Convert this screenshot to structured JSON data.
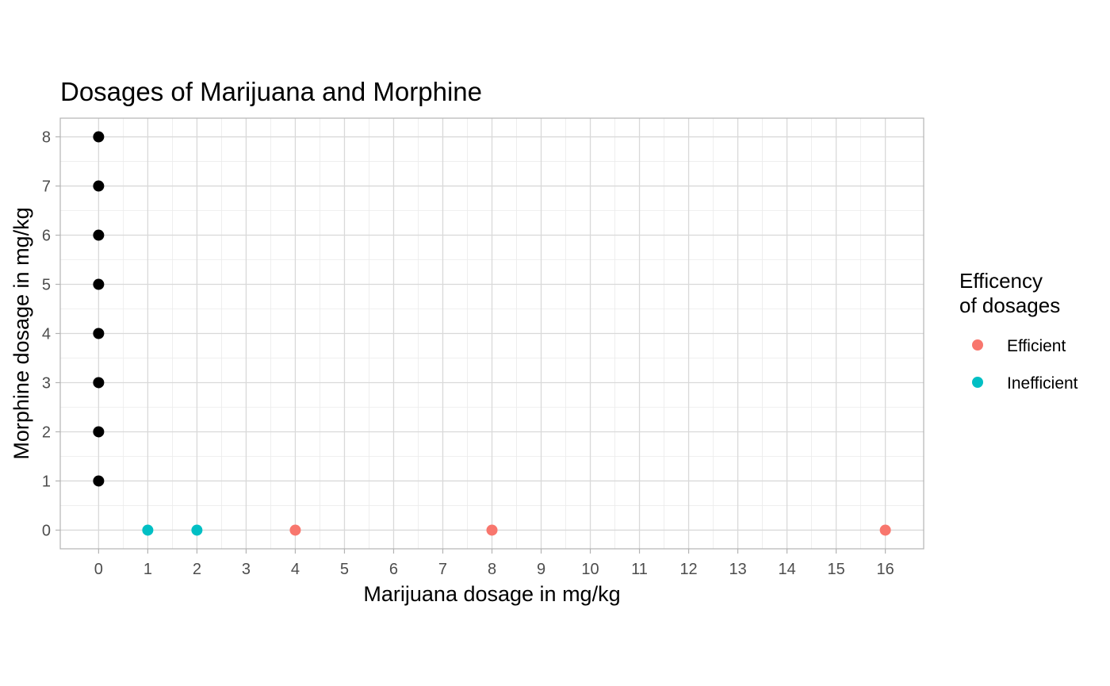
{
  "chart_data": {
    "type": "scatter",
    "title": "Dosages of Marijuana and Morphine",
    "xlabel": "Marijuana dosage in mg/kg",
    "ylabel": "Morphine dosage in mg/kg",
    "xlim": [
      -0.78,
      16.78
    ],
    "ylim": [
      -0.38,
      8.38
    ],
    "x_ticks": [
      0,
      1,
      2,
      3,
      4,
      5,
      6,
      7,
      8,
      9,
      10,
      11,
      12,
      13,
      14,
      15,
      16
    ],
    "y_ticks": [
      0,
      1,
      2,
      3,
      4,
      5,
      6,
      7,
      8
    ],
    "grid": true,
    "legend": {
      "title_lines": [
        "Efficency",
        "of dosages"
      ],
      "position": "right",
      "entries": [
        {
          "label": "Efficient",
          "color": "#F8766D"
        },
        {
          "label": "Inefficient",
          "color": "#00BFC4"
        }
      ]
    },
    "series": [
      {
        "name": "Morphine only",
        "color": "#000000",
        "in_legend": false,
        "points": [
          {
            "x": 0,
            "y": 1
          },
          {
            "x": 0,
            "y": 2
          },
          {
            "x": 0,
            "y": 3
          },
          {
            "x": 0,
            "y": 4
          },
          {
            "x": 0,
            "y": 5
          },
          {
            "x": 0,
            "y": 6
          },
          {
            "x": 0,
            "y": 7
          },
          {
            "x": 0,
            "y": 8
          }
        ]
      },
      {
        "name": "Inefficient",
        "color": "#00BFC4",
        "in_legend": true,
        "points": [
          {
            "x": 1,
            "y": 0
          },
          {
            "x": 2,
            "y": 0
          }
        ]
      },
      {
        "name": "Efficient",
        "color": "#F8766D",
        "in_legend": true,
        "points": [
          {
            "x": 4,
            "y": 0
          },
          {
            "x": 8,
            "y": 0
          },
          {
            "x": 16,
            "y": 0
          }
        ]
      }
    ]
  }
}
